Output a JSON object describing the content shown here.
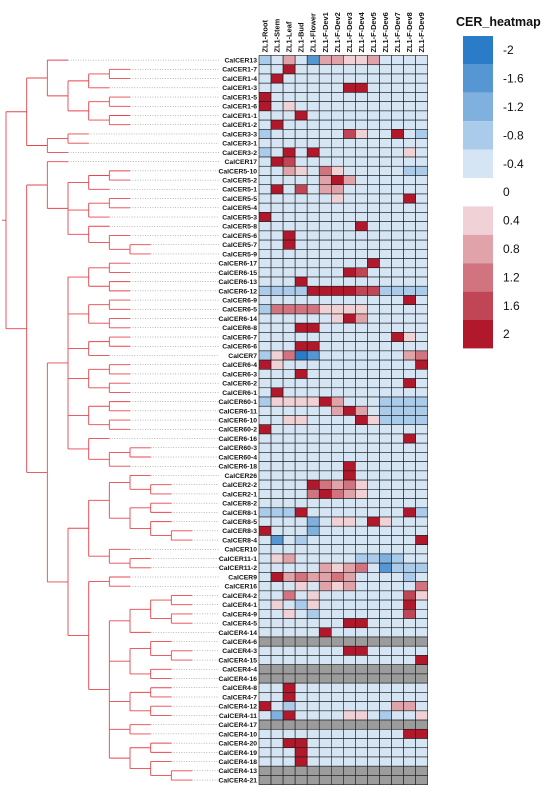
{
  "chart_data": {
    "type": "heatmap",
    "title": "",
    "legend": {
      "title": "CER_heatmap",
      "ticks": [
        "-2",
        "-1.6",
        "-1.2",
        "-0.8",
        "-0.4",
        "0",
        "0.4",
        "0.8",
        "1.2",
        "1.6",
        "2"
      ],
      "values": [
        -2,
        -1.6,
        -1.2,
        -0.8,
        -0.4,
        0,
        0.4,
        0.8,
        1.2,
        1.6,
        2
      ],
      "placement": "top-right"
    },
    "color_range": [
      -2,
      2
    ],
    "colors": {
      "low": "#2b7cc8",
      "mid": "#ffffff",
      "high": "#b2182b",
      "missing": "#9c9c9c",
      "tree": "#e8454d"
    },
    "columns": [
      "ZL1-Root",
      "ZL1-Stem",
      "ZL1-Leaf",
      "ZL1-Bud",
      "ZL1-Flower",
      "ZL1-F-Dev1",
      "ZL1-F-Dev2",
      "ZL1-F-Dev3",
      "ZL1-F-Dev4",
      "ZL1-F-Dev5",
      "ZL1-F-Dev6",
      "ZL1-F-Dev7",
      "ZL1-F-Dev8",
      "ZL1-F-Dev9"
    ],
    "rows": [
      "CalCER13",
      "CalCER1-7",
      "CalCER1-4",
      "CalCER1-3",
      "CalCER1-5",
      "CalCER1-6",
      "CalCER1-1",
      "CalCER1-2",
      "CalCER3-3",
      "CalCER3-1",
      "CalCER3-2",
      "CalCER17",
      "CalCER5-10",
      "CalCER5-2",
      "CalCER5-1",
      "CalCER5-5",
      "CalCER5-4",
      "CalCER5-3",
      "CalCER5-8",
      "CalCER5-6",
      "CalCER5-7",
      "CalCER5-9",
      "CalCER6-17",
      "CalCER6-15",
      "CalCER6-13",
      "CalCER6-12",
      "CalCER6-9",
      "CalCER6-5",
      "CalCER6-14",
      "CalCER6-8",
      "CalCER6-7",
      "CalCER6-6",
      "CalCER7",
      "CalCER6-4",
      "CalCER6-3",
      "CalCER6-2",
      "CalCER6-1",
      "CalCER60-1",
      "CalCER6-11",
      "CalCER6-10",
      "CalCER60-2",
      "CalCER6-16",
      "CalCER60-3",
      "CalCER60-4",
      "CalCER6-18",
      "CalCER26",
      "CalCER2-2",
      "CalCER2-1",
      "CalCER8-2",
      "CalCER8-1",
      "CalCER8-5",
      "CalCER8-3",
      "CalCER8-4",
      "CalCER10",
      "CalCER11-1",
      "CalCER11-2",
      "CalCER9",
      "CalCER16",
      "CalCER4-2",
      "CalCER4-1",
      "CalCER4-9",
      "CalCER4-5",
      "CalCER4-14",
      "CalCER4-6",
      "CalCER4-3",
      "CalCER4-15",
      "CalCER4-4",
      "CalCER4-16",
      "CalCER4-8",
      "CalCER4-7",
      "CalCER4-12",
      "CalCER4-11",
      "CalCER4-17",
      "CalCER4-10",
      "CalCER4-20",
      "CalCER4-19",
      "CalCER4-18",
      "CalCER4-13",
      "CalCER4-21"
    ],
    "values": [
      [
        -0.8,
        -0.4,
        0.8,
        -0.4,
        -1.6,
        0.8,
        0.8,
        0.4,
        0.4,
        0.8,
        -0.4,
        -0.4,
        -0.4,
        -0.4
      ],
      [
        -0.4,
        -0.4,
        2,
        -0.4,
        -0.4,
        -0.4,
        -0.4,
        -0.4,
        -0.4,
        -0.4,
        -0.4,
        -0.4,
        -0.4,
        -0.4
      ],
      [
        -0.4,
        2,
        -0.4,
        -0.4,
        -0.4,
        -0.4,
        -0.4,
        -0.4,
        -0.4,
        -0.4,
        -0.4,
        -0.4,
        -0.4,
        -0.4
      ],
      [
        -0.4,
        -0.4,
        -0.4,
        -0.4,
        -0.4,
        -0.4,
        -0.4,
        2,
        2,
        -0.4,
        -0.4,
        -0.4,
        -0.4,
        -0.4
      ],
      [
        2,
        -0.4,
        -0.4,
        -0.4,
        -0.4,
        -0.4,
        -0.4,
        -0.4,
        -0.4,
        -0.4,
        -0.4,
        -0.4,
        -0.4,
        -0.4
      ],
      [
        2,
        -0.4,
        0.4,
        -0.4,
        -0.4,
        -0.4,
        -0.4,
        -0.4,
        -0.4,
        -0.4,
        -0.4,
        -0.4,
        -0.4,
        -0.4
      ],
      [
        -0.4,
        -0.4,
        -0.4,
        2,
        -0.4,
        -0.4,
        -0.4,
        -0.4,
        -0.4,
        -0.4,
        -0.4,
        -0.4,
        -0.4,
        -0.4
      ],
      [
        -0.4,
        2,
        -0.4,
        -0.4,
        -0.4,
        -0.4,
        -0.4,
        -0.4,
        -0.4,
        -0.4,
        -0.4,
        -0.4,
        -0.4,
        -0.4
      ],
      [
        -0.8,
        -0.4,
        -0.4,
        -0.4,
        -0.4,
        -0.4,
        -0.4,
        1.6,
        0.4,
        -0.4,
        -0.4,
        2,
        -0.4,
        -0.8
      ],
      [
        -0.4,
        -0.4,
        -0.4,
        -0.4,
        -0.4,
        -0.4,
        -0.4,
        -0.4,
        -0.4,
        -0.4,
        -0.4,
        -0.4,
        -0.4,
        -0.4
      ],
      [
        -0.8,
        -0.4,
        2,
        -0.4,
        2,
        -0.4,
        -0.4,
        -0.4,
        -0.4,
        -0.4,
        -0.4,
        -0.4,
        0.4,
        -0.4
      ],
      [
        -0.4,
        2,
        1.6,
        -0.4,
        -0.4,
        -0.4,
        -0.4,
        -0.4,
        -0.4,
        -0.4,
        -0.4,
        -0.4,
        -0.4,
        -0.4
      ],
      [
        -0.4,
        -0.4,
        0.8,
        0.4,
        -0.4,
        1.2,
        0.4,
        -0.4,
        -0.4,
        -0.4,
        -0.4,
        -0.4,
        -0.8,
        -0.8
      ],
      [
        -0.4,
        -0.4,
        -0.4,
        -0.4,
        -0.4,
        0.8,
        2,
        0.8,
        -0.4,
        -0.4,
        -0.4,
        -0.4,
        -0.4,
        -0.4
      ],
      [
        -0.4,
        2,
        -0.4,
        1.6,
        -0.4,
        0.8,
        0.8,
        -0.4,
        -0.4,
        -0.4,
        -0.4,
        -0.4,
        -0.4,
        -0.4
      ],
      [
        -0.4,
        -0.4,
        -0.4,
        -0.4,
        -0.4,
        -0.4,
        0.4,
        -0.4,
        -0.4,
        -0.4,
        -0.4,
        -0.4,
        2,
        -0.4
      ],
      [
        -0.4,
        -0.4,
        -0.4,
        -0.4,
        -0.4,
        -0.4,
        -0.4,
        -0.4,
        -0.4,
        -0.4,
        -0.4,
        -0.4,
        -0.4,
        -0.4
      ],
      [
        2,
        -0.4,
        -0.4,
        -0.4,
        -0.4,
        -0.4,
        -0.4,
        -0.4,
        -0.4,
        -0.4,
        -0.4,
        -0.4,
        -0.4,
        -0.4
      ],
      [
        -0.4,
        -0.4,
        -0.4,
        -0.4,
        -0.4,
        -0.4,
        -0.4,
        -0.4,
        2,
        -0.4,
        -0.4,
        -0.4,
        -0.4,
        -0.4
      ],
      [
        -0.4,
        -0.4,
        2,
        -0.4,
        -0.4,
        -0.4,
        -0.4,
        -0.4,
        -0.4,
        -0.4,
        -0.4,
        -0.4,
        -0.4,
        -0.4
      ],
      [
        -0.4,
        -0.4,
        2,
        -0.4,
        -0.4,
        -0.4,
        -0.4,
        -0.4,
        -0.4,
        -0.4,
        -0.4,
        -0.4,
        -0.4,
        -0.4
      ],
      [
        -0.4,
        -0.4,
        -0.4,
        -0.4,
        -0.4,
        -0.4,
        -0.4,
        -0.4,
        -0.4,
        -0.4,
        -0.4,
        -0.4,
        -0.4,
        -0.4
      ],
      [
        -0.4,
        -0.4,
        -0.4,
        -0.4,
        -0.4,
        -0.4,
        -0.4,
        -0.4,
        -0.4,
        2,
        -0.4,
        -0.4,
        -0.4,
        -0.4
      ],
      [
        -0.4,
        -0.4,
        -0.4,
        -0.4,
        -0.4,
        -0.4,
        -0.4,
        2,
        1.6,
        -0.4,
        -0.4,
        -0.4,
        -0.4,
        -0.4
      ],
      [
        -0.4,
        -0.4,
        -0.4,
        2,
        -0.4,
        -0.4,
        -0.4,
        -0.4,
        -0.4,
        -0.4,
        -0.4,
        -0.4,
        -0.4,
        -0.4
      ],
      [
        -0.8,
        -0.8,
        -0.8,
        -0.8,
        2,
        2,
        2,
        2,
        1.6,
        1.6,
        -0.8,
        -0.8,
        -0.8,
        -0.8
      ],
      [
        -0.4,
        -0.4,
        -0.4,
        -0.4,
        -0.4,
        -0.4,
        -0.4,
        -0.4,
        -0.4,
        -0.4,
        -0.4,
        -0.4,
        2,
        -0.4
      ],
      [
        -0.8,
        1.2,
        1.2,
        1.2,
        1.2,
        0.4,
        0.4,
        0.4,
        0.4,
        -0.4,
        -0.4,
        -0.4,
        -0.4,
        -0.4
      ],
      [
        -0.4,
        -0.4,
        -0.4,
        -0.4,
        -0.4,
        -0.4,
        0.4,
        2,
        0.8,
        -0.4,
        -0.4,
        -0.4,
        -0.4,
        -0.4
      ],
      [
        -0.4,
        -0.4,
        -0.4,
        2,
        2,
        -0.4,
        -0.4,
        -0.4,
        -0.4,
        -0.4,
        -0.4,
        -0.4,
        -0.4,
        -0.4
      ],
      [
        -0.4,
        -0.4,
        -0.4,
        -0.4,
        -0.4,
        -0.4,
        -0.4,
        -0.4,
        -0.4,
        -0.4,
        -0.4,
        2,
        0.4,
        -0.4
      ],
      [
        -0.4,
        -0.4,
        -0.4,
        2,
        2,
        -0.4,
        -0.4,
        -0.4,
        -0.4,
        -0.4,
        -0.4,
        -0.4,
        -0.4,
        -0.4
      ],
      [
        -0.8,
        0.4,
        1.2,
        -2,
        -1.6,
        -0.4,
        -0.4,
        -0.4,
        -0.4,
        -0.4,
        -0.4,
        -0.4,
        0.8,
        1.2
      ],
      [
        2,
        0.4,
        -0.4,
        -0.4,
        -0.4,
        -0.4,
        -0.4,
        -0.4,
        -0.4,
        -0.4,
        -0.4,
        -0.4,
        -0.4,
        2
      ],
      [
        -0.4,
        -0.4,
        -0.4,
        2,
        -0.4,
        -0.4,
        -0.4,
        -0.4,
        -0.4,
        -0.4,
        -0.4,
        -0.4,
        -0.4,
        -0.4
      ],
      [
        -0.4,
        -0.4,
        -0.4,
        -0.4,
        -0.4,
        -0.4,
        -0.4,
        -0.4,
        -0.4,
        -0.4,
        -0.4,
        -0.4,
        2,
        -0.4
      ],
      [
        -0.4,
        2,
        -0.4,
        -0.4,
        -0.4,
        -0.4,
        -0.4,
        -0.4,
        -0.4,
        -0.4,
        -0.4,
        -0.4,
        -0.4,
        -0.4
      ],
      [
        -0.8,
        0.4,
        0.4,
        0.4,
        0.4,
        2,
        0.8,
        -0.4,
        -0.4,
        -0.4,
        -0.8,
        -0.8,
        -0.8,
        -0.8
      ],
      [
        -0.4,
        -0.4,
        -0.4,
        -0.4,
        -0.4,
        -0.4,
        0.8,
        2,
        0.8,
        -0.4,
        -0.8,
        -0.8,
        -0.8,
        -0.8
      ],
      [
        -0.4,
        -0.4,
        0.4,
        0.4,
        -0.4,
        -0.4,
        -0.4,
        -0.4,
        2,
        0.4,
        -0.8,
        -0.8,
        -0.8,
        -0.8
      ],
      [
        2,
        -0.4,
        -0.4,
        -0.4,
        -0.4,
        -0.4,
        -0.4,
        -0.4,
        -0.4,
        -0.4,
        -0.4,
        -0.4,
        -0.4,
        -0.4
      ],
      [
        -0.4,
        -0.4,
        -0.4,
        -0.4,
        -0.4,
        -0.4,
        -0.4,
        -0.4,
        -0.4,
        -0.4,
        -0.4,
        -0.4,
        2,
        -0.4
      ],
      [
        -0.4,
        -0.4,
        -0.4,
        -0.4,
        -0.4,
        -0.4,
        -0.4,
        -0.4,
        -0.4,
        -0.4,
        -0.4,
        -0.4,
        -0.4,
        -0.4
      ],
      [
        -0.4,
        -0.4,
        -0.4,
        -0.4,
        -0.4,
        -0.4,
        -0.4,
        -0.4,
        -0.4,
        -0.4,
        -0.4,
        -0.4,
        -0.4,
        -0.4
      ],
      [
        -0.4,
        -0.4,
        -0.4,
        -0.4,
        -0.4,
        -0.4,
        -0.4,
        2,
        -0.4,
        -0.4,
        -0.4,
        -0.4,
        -0.4,
        -0.4
      ],
      [
        -0.4,
        -0.4,
        -0.4,
        -0.4,
        -0.4,
        -0.4,
        -0.4,
        2,
        -0.4,
        -0.4,
        -0.4,
        -0.4,
        -0.4,
        -0.4
      ],
      [
        -0.4,
        -0.4,
        -0.4,
        -0.4,
        2,
        1.2,
        0.8,
        1.2,
        0.4,
        -0.4,
        -0.4,
        -0.4,
        -0.4,
        -0.4
      ],
      [
        -0.4,
        -0.4,
        -0.4,
        -0.4,
        1.2,
        2,
        1.2,
        0.8,
        0.4,
        -0.4,
        -0.4,
        -0.4,
        -0.4,
        -0.4
      ],
      [
        -0.4,
        -0.4,
        -0.4,
        -0.4,
        -0.4,
        -0.4,
        -0.4,
        -0.4,
        -0.4,
        -0.4,
        -0.4,
        -0.4,
        -0.4,
        -0.4
      ],
      [
        -0.8,
        -0.8,
        -0.8,
        2,
        -0.4,
        -0.4,
        -0.4,
        -0.4,
        -0.4,
        -0.4,
        -0.4,
        -0.4,
        2,
        -0.8
      ],
      [
        -0.4,
        -0.4,
        -0.4,
        -0.4,
        -1.2,
        -0.4,
        0.4,
        0.4,
        -0.4,
        2,
        0.4,
        -0.4,
        -0.4,
        -0.4
      ],
      [
        2,
        -0.4,
        -0.4,
        -0.4,
        -1.2,
        -0.4,
        -0.4,
        -0.4,
        -0.4,
        -0.4,
        -0.4,
        -0.4,
        -0.4,
        -0.4
      ],
      [
        -0.4,
        -1.6,
        -0.4,
        -0.8,
        -0.4,
        -0.4,
        -0.4,
        -0.4,
        -0.4,
        -0.4,
        -0.4,
        -0.4,
        -0.4,
        2
      ],
      [
        -0.4,
        -0.4,
        -0.4,
        -0.4,
        -0.4,
        -0.4,
        -0.4,
        -0.4,
        -0.4,
        -0.4,
        -0.4,
        -0.4,
        -0.4,
        -0.4
      ],
      [
        -0.4,
        0.4,
        0.8,
        -0.4,
        -0.4,
        -0.4,
        -0.4,
        -0.4,
        -0.8,
        -0.8,
        -1.2,
        -0.8,
        -0.4,
        -0.4
      ],
      [
        -0.4,
        -0.4,
        -0.4,
        -0.4,
        -0.4,
        0.8,
        0.4,
        0.8,
        1.2,
        -0.4,
        -1.6,
        -0.8,
        -0.8,
        -0.8
      ],
      [
        -0.4,
        2,
        0.8,
        1.2,
        0.8,
        0.8,
        1.2,
        0.8,
        -0.4,
        -0.4,
        -0.4,
        -0.4,
        -0.8,
        -0.4
      ],
      [
        -0.4,
        -0.4,
        -0.4,
        0.4,
        -0.4,
        0.8,
        0.4,
        0.8,
        -0.4,
        -0.4,
        -0.4,
        -0.4,
        -0.4,
        1.2
      ],
      [
        -0.4,
        -0.4,
        1.2,
        -0.4,
        0.4,
        -0.4,
        -0.4,
        -0.4,
        -0.4,
        -0.4,
        -0.4,
        -0.4,
        1.6,
        0.4
      ],
      [
        -0.4,
        0.4,
        -0.4,
        -0.8,
        0.4,
        -0.4,
        -0.4,
        -0.4,
        -0.4,
        -0.4,
        -0.4,
        -0.4,
        2,
        -0.4
      ],
      [
        -0.4,
        -0.4,
        0.4,
        -0.4,
        -0.8,
        -0.4,
        -0.4,
        -0.4,
        -0.4,
        -0.4,
        -0.4,
        -0.4,
        1.6,
        -0.4
      ],
      [
        -0.4,
        -0.4,
        -0.4,
        -0.4,
        -0.4,
        -0.4,
        -0.4,
        2,
        2,
        -0.4,
        -0.4,
        -0.4,
        -0.4,
        -0.4
      ],
      [
        -0.4,
        -0.4,
        -0.4,
        -0.4,
        -0.4,
        2,
        -0.4,
        -0.4,
        -0.4,
        -0.4,
        -0.4,
        -0.4,
        -0.4,
        -0.4
      ],
      [
        null,
        null,
        null,
        null,
        null,
        null,
        null,
        null,
        null,
        null,
        null,
        null,
        null,
        null
      ],
      [
        -0.4,
        -0.4,
        -0.4,
        -0.4,
        -0.4,
        -0.4,
        -0.4,
        2,
        2,
        -0.4,
        -0.4,
        -0.4,
        -0.4,
        -0.4
      ],
      [
        -0.4,
        -0.4,
        -0.4,
        -0.4,
        -0.4,
        -0.4,
        -0.4,
        -0.4,
        -0.4,
        -0.4,
        -0.4,
        -0.4,
        -0.4,
        2
      ],
      [
        null,
        null,
        null,
        null,
        null,
        null,
        null,
        null,
        null,
        null,
        null,
        null,
        null,
        null
      ],
      [
        null,
        null,
        null,
        null,
        null,
        null,
        null,
        null,
        null,
        null,
        null,
        null,
        null,
        null
      ],
      [
        -0.4,
        -0.4,
        2,
        -0.4,
        -0.4,
        -0.4,
        -0.4,
        -0.4,
        -0.4,
        -0.4,
        -0.4,
        -0.4,
        -0.4,
        -0.4
      ],
      [
        -0.4,
        -0.4,
        2,
        -0.4,
        -0.4,
        -0.4,
        -0.4,
        -0.4,
        -0.4,
        -0.4,
        -0.4,
        -0.4,
        -0.4,
        -0.4
      ],
      [
        2,
        -0.4,
        -0.8,
        -0.4,
        -0.4,
        -0.4,
        -0.4,
        -0.4,
        -0.4,
        -0.4,
        -0.4,
        0.8,
        0.8,
        -0.4
      ],
      [
        -0.4,
        -1.2,
        2,
        -0.4,
        -0.4,
        -0.4,
        -0.4,
        0.4,
        0.4,
        -0.4,
        -0.8,
        -0.4,
        -0.4,
        0.4
      ],
      [
        null,
        null,
        null,
        null,
        null,
        null,
        null,
        null,
        null,
        null,
        null,
        null,
        null,
        null
      ],
      [
        -0.4,
        -0.4,
        -0.4,
        -0.4,
        -0.4,
        -0.4,
        -0.4,
        -0.4,
        -0.4,
        -0.4,
        -0.4,
        -0.4,
        2,
        2
      ],
      [
        -0.4,
        -0.4,
        2,
        2,
        -0.4,
        -0.4,
        -0.4,
        -0.4,
        -0.4,
        -0.4,
        -0.4,
        -0.4,
        -0.4,
        -0.4
      ],
      [
        -0.4,
        -0.4,
        -0.4,
        2,
        -0.4,
        -0.4,
        -0.4,
        -0.4,
        -0.4,
        -0.4,
        -0.4,
        -0.4,
        -0.4,
        -0.4
      ],
      [
        -0.4,
        -0.4,
        -0.4,
        2,
        -0.4,
        -0.4,
        -0.4,
        -0.4,
        -0.4,
        -0.4,
        -0.4,
        -0.4,
        -0.4,
        -0.4
      ],
      [
        null,
        null,
        null,
        null,
        null,
        null,
        null,
        null,
        null,
        null,
        null,
        null,
        null,
        null
      ],
      [
        null,
        null,
        null,
        null,
        null,
        null,
        null,
        null,
        null,
        null,
        null,
        null,
        null,
        null
      ]
    ],
    "grid": true
  }
}
